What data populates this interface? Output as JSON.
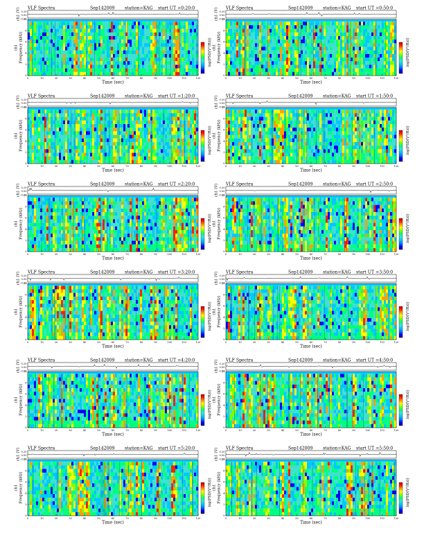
{
  "header": {
    "title": "VLF Spectra",
    "date": "Sep142009",
    "station": "station=KAG",
    "start_prefix": "start  UT ="
  },
  "axes": {
    "xlabel": "Time (sec)",
    "ylabel_freq": "Frequency (kHz)",
    "ylabel_channel": "ch1",
    "ylabel_amp": "ch1 (V)",
    "colorbar_label": "log(PSD(V²/Hz))",
    "xticks": [
      "0",
      "10",
      "20",
      "30",
      "40",
      "50",
      "60",
      "70",
      "80",
      "90",
      "100",
      "110",
      "120"
    ],
    "yticks": [
      "0",
      "2",
      "4",
      "6",
      "8",
      "10"
    ],
    "amp_ticks": [
      "0.20",
      "0.00",
      "-0.20"
    ],
    "colorbar_ticks": [
      "-",
      "",
      "",
      "",
      "",
      "",
      "-"
    ]
  },
  "chart_data": [
    {
      "type": "heatmap",
      "start_ut": "0:20:0",
      "xlim": [
        0,
        120
      ],
      "ylim": [
        0,
        10
      ],
      "xlabel": "Time (sec)",
      "ylabel": "Frequency (kHz)"
    },
    {
      "type": "heatmap",
      "start_ut": "0:50:0",
      "xlim": [
        0,
        120
      ],
      "ylim": [
        0,
        10
      ],
      "xlabel": "Time (sec)",
      "ylabel": "Frequency (kHz)"
    },
    {
      "type": "heatmap",
      "start_ut": "1:20:0",
      "xlim": [
        0,
        120
      ],
      "ylim": [
        0,
        10
      ],
      "xlabel": "Time (sec)",
      "ylabel": "Frequency (kHz)"
    },
    {
      "type": "heatmap",
      "start_ut": "1:50:0",
      "xlim": [
        0,
        120
      ],
      "ylim": [
        0,
        10
      ],
      "xlabel": "Time (sec)",
      "ylabel": "Frequency (kHz)"
    },
    {
      "type": "heatmap",
      "start_ut": "2:20:0",
      "xlim": [
        0,
        120
      ],
      "ylim": [
        0,
        10
      ],
      "xlabel": "Time (sec)",
      "ylabel": "Frequency (kHz)"
    },
    {
      "type": "heatmap",
      "start_ut": "2:50:0",
      "xlim": [
        0,
        120
      ],
      "ylim": [
        0,
        10
      ],
      "xlabel": "Time (sec)",
      "ylabel": "Frequency (kHz)"
    },
    {
      "type": "heatmap",
      "start_ut": "3:20:0",
      "xlim": [
        0,
        120
      ],
      "ylim": [
        0,
        10
      ],
      "xlabel": "Time (sec)",
      "ylabel": "Frequency (kHz)"
    },
    {
      "type": "heatmap",
      "start_ut": "3:50:0",
      "xlim": [
        0,
        120
      ],
      "ylim": [
        0,
        10
      ],
      "xlabel": "Time (sec)",
      "ylabel": "Frequency (kHz)"
    },
    {
      "type": "heatmap",
      "start_ut": "4:20:0",
      "xlim": [
        0,
        120
      ],
      "ylim": [
        0,
        10
      ],
      "xlabel": "Time (sec)",
      "ylabel": "Frequency (kHz)"
    },
    {
      "type": "heatmap",
      "start_ut": "4:50:0",
      "xlim": [
        0,
        120
      ],
      "ylim": [
        0,
        10
      ],
      "xlabel": "Time (sec)",
      "ylabel": "Frequency (kHz)"
    },
    {
      "type": "heatmap",
      "start_ut": "5:20:0",
      "xlim": [
        0,
        120
      ],
      "ylim": [
        0,
        10
      ],
      "xlabel": "Time (sec)",
      "ylabel": "Frequency (kHz)"
    },
    {
      "type": "heatmap",
      "start_ut": "5:50:0",
      "xlim": [
        0,
        120
      ],
      "ylim": [
        0,
        10
      ],
      "xlabel": "Time (sec)",
      "ylabel": "Frequency (kHz)"
    }
  ],
  "colors": {
    "colormap": [
      "#00008b",
      "#0000ff",
      "#0080ff",
      "#00c8ff",
      "#40e0d0",
      "#00ff80",
      "#80ff00",
      "#ffff00",
      "#ffa000",
      "#ff2000",
      "#c00000"
    ],
    "trace": "#000000",
    "background": "#ffffff"
  }
}
